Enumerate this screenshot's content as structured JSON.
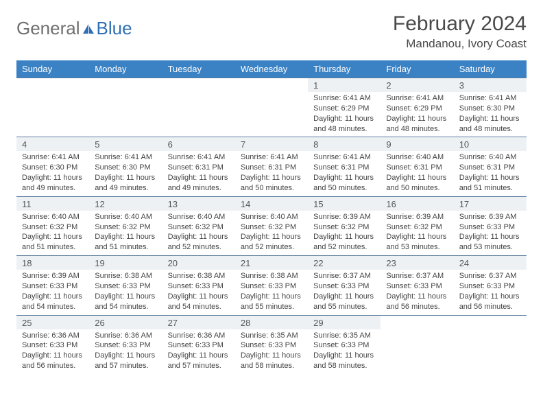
{
  "brand": {
    "general": "General",
    "blue": "Blue"
  },
  "header": {
    "month_title": "February 2024",
    "location": "Mandanou, Ivory Coast"
  },
  "style": {
    "header_bg": "#3b82c4",
    "header_text": "#ffffff",
    "daynum_bg": "#eef1f4",
    "border_color": "#5a7a9a",
    "text_color": "#444444",
    "title_color": "#4a4a4a"
  },
  "day_headers": [
    "Sunday",
    "Monday",
    "Tuesday",
    "Wednesday",
    "Thursday",
    "Friday",
    "Saturday"
  ],
  "weeks": [
    [
      null,
      null,
      null,
      null,
      {
        "num": "1",
        "sunrise": "Sunrise: 6:41 AM",
        "sunset": "Sunset: 6:29 PM",
        "daylight": "Daylight: 11 hours and 48 minutes."
      },
      {
        "num": "2",
        "sunrise": "Sunrise: 6:41 AM",
        "sunset": "Sunset: 6:29 PM",
        "daylight": "Daylight: 11 hours and 48 minutes."
      },
      {
        "num": "3",
        "sunrise": "Sunrise: 6:41 AM",
        "sunset": "Sunset: 6:30 PM",
        "daylight": "Daylight: 11 hours and 48 minutes."
      }
    ],
    [
      {
        "num": "4",
        "sunrise": "Sunrise: 6:41 AM",
        "sunset": "Sunset: 6:30 PM",
        "daylight": "Daylight: 11 hours and 49 minutes."
      },
      {
        "num": "5",
        "sunrise": "Sunrise: 6:41 AM",
        "sunset": "Sunset: 6:30 PM",
        "daylight": "Daylight: 11 hours and 49 minutes."
      },
      {
        "num": "6",
        "sunrise": "Sunrise: 6:41 AM",
        "sunset": "Sunset: 6:31 PM",
        "daylight": "Daylight: 11 hours and 49 minutes."
      },
      {
        "num": "7",
        "sunrise": "Sunrise: 6:41 AM",
        "sunset": "Sunset: 6:31 PM",
        "daylight": "Daylight: 11 hours and 50 minutes."
      },
      {
        "num": "8",
        "sunrise": "Sunrise: 6:41 AM",
        "sunset": "Sunset: 6:31 PM",
        "daylight": "Daylight: 11 hours and 50 minutes."
      },
      {
        "num": "9",
        "sunrise": "Sunrise: 6:40 AM",
        "sunset": "Sunset: 6:31 PM",
        "daylight": "Daylight: 11 hours and 50 minutes."
      },
      {
        "num": "10",
        "sunrise": "Sunrise: 6:40 AM",
        "sunset": "Sunset: 6:31 PM",
        "daylight": "Daylight: 11 hours and 51 minutes."
      }
    ],
    [
      {
        "num": "11",
        "sunrise": "Sunrise: 6:40 AM",
        "sunset": "Sunset: 6:32 PM",
        "daylight": "Daylight: 11 hours and 51 minutes."
      },
      {
        "num": "12",
        "sunrise": "Sunrise: 6:40 AM",
        "sunset": "Sunset: 6:32 PM",
        "daylight": "Daylight: 11 hours and 51 minutes."
      },
      {
        "num": "13",
        "sunrise": "Sunrise: 6:40 AM",
        "sunset": "Sunset: 6:32 PM",
        "daylight": "Daylight: 11 hours and 52 minutes."
      },
      {
        "num": "14",
        "sunrise": "Sunrise: 6:40 AM",
        "sunset": "Sunset: 6:32 PM",
        "daylight": "Daylight: 11 hours and 52 minutes."
      },
      {
        "num": "15",
        "sunrise": "Sunrise: 6:39 AM",
        "sunset": "Sunset: 6:32 PM",
        "daylight": "Daylight: 11 hours and 52 minutes."
      },
      {
        "num": "16",
        "sunrise": "Sunrise: 6:39 AM",
        "sunset": "Sunset: 6:32 PM",
        "daylight": "Daylight: 11 hours and 53 minutes."
      },
      {
        "num": "17",
        "sunrise": "Sunrise: 6:39 AM",
        "sunset": "Sunset: 6:33 PM",
        "daylight": "Daylight: 11 hours and 53 minutes."
      }
    ],
    [
      {
        "num": "18",
        "sunrise": "Sunrise: 6:39 AM",
        "sunset": "Sunset: 6:33 PM",
        "daylight": "Daylight: 11 hours and 54 minutes."
      },
      {
        "num": "19",
        "sunrise": "Sunrise: 6:38 AM",
        "sunset": "Sunset: 6:33 PM",
        "daylight": "Daylight: 11 hours and 54 minutes."
      },
      {
        "num": "20",
        "sunrise": "Sunrise: 6:38 AM",
        "sunset": "Sunset: 6:33 PM",
        "daylight": "Daylight: 11 hours and 54 minutes."
      },
      {
        "num": "21",
        "sunrise": "Sunrise: 6:38 AM",
        "sunset": "Sunset: 6:33 PM",
        "daylight": "Daylight: 11 hours and 55 minutes."
      },
      {
        "num": "22",
        "sunrise": "Sunrise: 6:37 AM",
        "sunset": "Sunset: 6:33 PM",
        "daylight": "Daylight: 11 hours and 55 minutes."
      },
      {
        "num": "23",
        "sunrise": "Sunrise: 6:37 AM",
        "sunset": "Sunset: 6:33 PM",
        "daylight": "Daylight: 11 hours and 56 minutes."
      },
      {
        "num": "24",
        "sunrise": "Sunrise: 6:37 AM",
        "sunset": "Sunset: 6:33 PM",
        "daylight": "Daylight: 11 hours and 56 minutes."
      }
    ],
    [
      {
        "num": "25",
        "sunrise": "Sunrise: 6:36 AM",
        "sunset": "Sunset: 6:33 PM",
        "daylight": "Daylight: 11 hours and 56 minutes."
      },
      {
        "num": "26",
        "sunrise": "Sunrise: 6:36 AM",
        "sunset": "Sunset: 6:33 PM",
        "daylight": "Daylight: 11 hours and 57 minutes."
      },
      {
        "num": "27",
        "sunrise": "Sunrise: 6:36 AM",
        "sunset": "Sunset: 6:33 PM",
        "daylight": "Daylight: 11 hours and 57 minutes."
      },
      {
        "num": "28",
        "sunrise": "Sunrise: 6:35 AM",
        "sunset": "Sunset: 6:33 PM",
        "daylight": "Daylight: 11 hours and 58 minutes."
      },
      {
        "num": "29",
        "sunrise": "Sunrise: 6:35 AM",
        "sunset": "Sunset: 6:33 PM",
        "daylight": "Daylight: 11 hours and 58 minutes."
      },
      null,
      null
    ]
  ]
}
